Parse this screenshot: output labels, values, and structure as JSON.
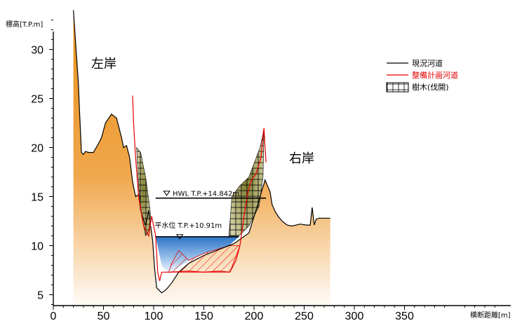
{
  "chart_data": {
    "type": "area",
    "title": "",
    "ylabel": "標高[T.P.m]",
    "xlabel": "横断距離[m]",
    "xlim": [
      0,
      465
    ],
    "ylim": [
      3,
      34
    ],
    "x_ticks": [
      "0",
      "50",
      "100",
      "150",
      "200",
      "250",
      "300",
      "350"
    ],
    "y_ticks": [
      "5",
      "10",
      "15",
      "20",
      "25",
      "30"
    ],
    "bank_labels": {
      "left": "左岸",
      "right": "右岸"
    },
    "water_levels": {
      "hwl": {
        "label": "HWL T.P.+14.842m",
        "value": 14.842,
        "x_range": [
          102,
          212
        ]
      },
      "normal": {
        "label": "平水位 T.P.+10.91m",
        "value": 10.91,
        "x_range": [
          102,
          185
        ]
      }
    },
    "legend": [
      {
        "label": "現況河道",
        "style": "black-line"
      },
      {
        "label": "整備計画河道",
        "style": "red-line"
      },
      {
        "label": "樹木(伐開)",
        "style": "grid-box"
      }
    ],
    "existing_ground": {
      "x": [
        20,
        22,
        25,
        26,
        28,
        30,
        32,
        35,
        40,
        45,
        48,
        52,
        58,
        63,
        66,
        68,
        70,
        73,
        76,
        79,
        82,
        85,
        87,
        90,
        92,
        94,
        95,
        97,
        99,
        101,
        103,
        106,
        108,
        111,
        114,
        118,
        125,
        135,
        150,
        165,
        180,
        195,
        205,
        208,
        210,
        211,
        213,
        216,
        218,
        221,
        224,
        228,
        233,
        238,
        246,
        252,
        256,
        258,
        260,
        262,
        265,
        272,
        276
      ],
      "y": [
        34,
        31,
        26.5,
        24,
        19.5,
        19.3,
        19.6,
        19.5,
        19.5,
        20.4,
        21,
        22.5,
        23.4,
        23,
        21.8,
        21,
        20,
        20.2,
        19,
        16.5,
        15,
        15.2,
        13.6,
        12.6,
        12.1,
        13,
        13.6,
        12,
        10.5,
        7.6,
        5.7,
        5.4,
        5.2,
        5.4,
        5.7,
        6.2,
        7.3,
        8.2,
        9,
        9.6,
        10.2,
        11.3,
        14.6,
        15.7,
        16.3,
        16.7,
        16.2,
        15.5,
        14.2,
        13.5,
        13,
        12.5,
        12.1,
        12,
        12.2,
        12.1,
        12.1,
        13.9,
        12.1,
        12.7,
        12.8,
        12.8,
        12.8
      ]
    },
    "planned_channel": {
      "x": [
        79,
        80,
        82,
        85,
        90,
        95,
        98,
        102,
        104,
        106,
        108,
        115,
        135,
        150,
        165,
        176,
        182,
        186,
        190,
        194,
        198,
        202,
        204,
        207,
        209,
        210,
        211,
        212
      ],
      "y": [
        25.3,
        22.5,
        19,
        15,
        12,
        11,
        13,
        11,
        7.3,
        6.4,
        7.3,
        7.3,
        7.4,
        7.3,
        7.4,
        7.3,
        8.5,
        10,
        13,
        15.5,
        16.8,
        17.3,
        18,
        19,
        21.3,
        22,
        20,
        18.5
      ]
    },
    "tree_areas": [
      {
        "x": [
          83,
          87,
          92,
          96,
          97,
          95,
          92,
          88,
          85,
          83
        ],
        "y": [
          20,
          19.5,
          17,
          14,
          13,
          11.5,
          11,
          13,
          16,
          20
        ]
      },
      {
        "x": [
          175,
          185,
          195,
          205,
          209,
          210,
          206,
          195,
          185,
          178,
          175
        ],
        "y": [
          11,
          11,
          12,
          14,
          17,
          21.8,
          20,
          17,
          16,
          15,
          11
        ]
      }
    ],
    "water_fill": {
      "x": [
        102,
        108,
        115,
        125,
        135,
        150,
        165,
        175,
        185,
        185,
        102
      ],
      "y": [
        10.91,
        8,
        7,
        7.8,
        8.5,
        9.2,
        9.7,
        10,
        10.91,
        10.91,
        10.91
      ]
    }
  }
}
